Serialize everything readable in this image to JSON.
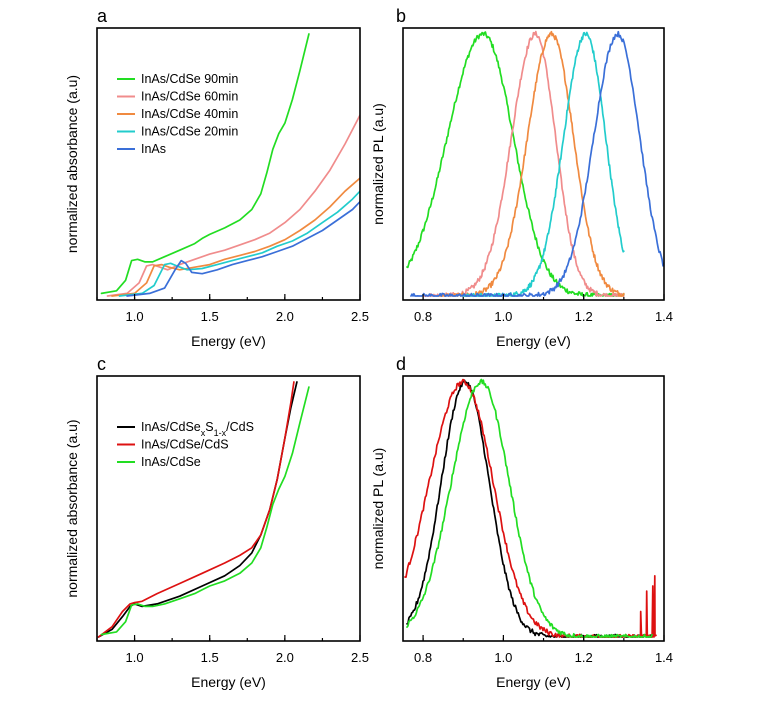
{
  "chart_data": [
    {
      "panel": "a",
      "type": "line",
      "xlabel": "Energy (eV)",
      "ylabel": "normalized absorbance (a.u)",
      "xlim": [
        0.75,
        2.5
      ],
      "ylim": [
        0,
        1
      ],
      "xticks": [
        1.0,
        1.5,
        2.0,
        2.5
      ],
      "xtick_labels": [
        "1.0",
        "1.5",
        "2.0",
        "2.5"
      ],
      "legend_position": "top-left",
      "series": [
        {
          "name": "InAs/CdSe 90min",
          "color": "#22dd22",
          "x": [
            0.78,
            0.88,
            0.94,
            0.98,
            1.02,
            1.07,
            1.12,
            1.2,
            1.3,
            1.4,
            1.45,
            1.5,
            1.6,
            1.7,
            1.78,
            1.84,
            1.88,
            1.92,
            1.96,
            2.0,
            2.05,
            2.1,
            2.16
          ],
          "y": [
            0.01,
            0.02,
            0.06,
            0.135,
            0.14,
            0.13,
            0.13,
            0.15,
            0.175,
            0.2,
            0.22,
            0.235,
            0.26,
            0.29,
            0.33,
            0.39,
            0.47,
            0.56,
            0.62,
            0.66,
            0.75,
            0.86,
            1.0
          ]
        },
        {
          "name": "InAs/CdSe 60min",
          "color": "#f08c8c",
          "x": [
            0.82,
            0.95,
            1.03,
            1.08,
            1.12,
            1.17,
            1.22,
            1.3,
            1.4,
            1.5,
            1.6,
            1.7,
            1.8,
            1.9,
            2.0,
            2.1,
            2.2,
            2.3,
            2.4,
            2.5
          ],
          "y": [
            0.0,
            0.01,
            0.05,
            0.115,
            0.12,
            0.11,
            0.1,
            0.12,
            0.14,
            0.16,
            0.175,
            0.195,
            0.215,
            0.24,
            0.28,
            0.33,
            0.4,
            0.48,
            0.58,
            0.69
          ]
        },
        {
          "name": "InAs/CdSe 40min",
          "color": "#f08a40",
          "x": [
            0.85,
            1.0,
            1.08,
            1.13,
            1.18,
            1.23,
            1.3,
            1.4,
            1.5,
            1.6,
            1.7,
            1.8,
            1.9,
            2.0,
            2.1,
            2.2,
            2.3,
            2.4,
            2.5
          ],
          "y": [
            0.0,
            0.01,
            0.05,
            0.115,
            0.12,
            0.11,
            0.1,
            0.11,
            0.12,
            0.14,
            0.155,
            0.17,
            0.19,
            0.215,
            0.25,
            0.29,
            0.34,
            0.4,
            0.45
          ]
        },
        {
          "name": "InAs/CdSe 20min",
          "color": "#22cccc",
          "x": [
            0.9,
            1.05,
            1.13,
            1.2,
            1.24,
            1.28,
            1.35,
            1.45,
            1.55,
            1.65,
            1.75,
            1.85,
            1.95,
            2.05,
            2.15,
            2.25,
            2.35,
            2.45,
            2.5
          ],
          "y": [
            0.0,
            0.01,
            0.04,
            0.12,
            0.125,
            0.115,
            0.1,
            0.105,
            0.12,
            0.135,
            0.15,
            0.165,
            0.19,
            0.21,
            0.24,
            0.28,
            0.32,
            0.37,
            0.4
          ]
        },
        {
          "name": "InAs",
          "color": "#3a6fd8",
          "x": [
            0.95,
            1.1,
            1.2,
            1.27,
            1.31,
            1.34,
            1.38,
            1.45,
            1.55,
            1.65,
            1.75,
            1.85,
            1.95,
            2.05,
            2.15,
            2.25,
            2.35,
            2.45,
            2.5
          ],
          "y": [
            0.0,
            0.01,
            0.03,
            0.1,
            0.135,
            0.125,
            0.09,
            0.085,
            0.1,
            0.12,
            0.135,
            0.15,
            0.17,
            0.19,
            0.22,
            0.25,
            0.29,
            0.33,
            0.36
          ]
        }
      ]
    },
    {
      "panel": "b",
      "type": "line",
      "xlabel": "Energy (eV)",
      "ylabel": "normalized PL (a.u)",
      "xlim": [
        0.75,
        1.4
      ],
      "ylim": [
        0,
        1
      ],
      "xticks": [
        0.8,
        1.0,
        1.2,
        1.4
      ],
      "xtick_labels": [
        "0.8",
        "1.0",
        "1.2",
        "1.4"
      ],
      "series": [
        {
          "name": "InAs/CdSe 90min",
          "color": "#22dd22",
          "peak": 0.95,
          "width_low": 0.09,
          "width_high": 0.075,
          "x_range": [
            0.76,
            1.3
          ]
        },
        {
          "name": "InAs/CdSe 60min",
          "color": "#f08c8c",
          "peak": 1.08,
          "width_low": 0.06,
          "width_high": 0.05,
          "x_range": [
            0.8,
            1.3
          ]
        },
        {
          "name": "InAs/CdSe 40min",
          "color": "#f08a40",
          "peak": 1.12,
          "width_low": 0.06,
          "width_high": 0.055,
          "x_range": [
            0.84,
            1.3
          ]
        },
        {
          "name": "InAs/CdSe 20min",
          "color": "#22cccc",
          "peak": 1.205,
          "width_low": 0.055,
          "width_high": 0.05,
          "x_range": [
            0.9,
            1.3
          ]
        },
        {
          "name": "InAs",
          "color": "#3a6fd8",
          "peak": 1.285,
          "width_low": 0.06,
          "width_high": 0.055,
          "x_range": [
            0.77,
            1.4
          ]
        }
      ]
    },
    {
      "panel": "c",
      "type": "line",
      "xlabel": "Energy (eV)",
      "ylabel": "normalized absorbance (a.u)",
      "xlim": [
        0.75,
        2.5
      ],
      "ylim": [
        0,
        1
      ],
      "xticks": [
        1.0,
        1.5,
        2.0,
        2.5
      ],
      "xtick_labels": [
        "1.0",
        "1.5",
        "2.0",
        "2.5"
      ],
      "legend_position": "top-left",
      "series": [
        {
          "name": "InAs/CdSexS1-x/CdS",
          "name_parts": [
            "InAs/CdSe",
            "x",
            "S",
            "1-x",
            "/CdS"
          ],
          "color": "#000000",
          "x": [
            0.76,
            0.85,
            0.92,
            0.97,
            1.0,
            1.05,
            1.15,
            1.3,
            1.45,
            1.6,
            1.7,
            1.78,
            1.84,
            1.9,
            1.95,
            2.0,
            2.04,
            2.08
          ],
          "y": [
            0.0,
            0.03,
            0.08,
            0.12,
            0.13,
            0.12,
            0.13,
            0.16,
            0.2,
            0.24,
            0.28,
            0.33,
            0.4,
            0.5,
            0.62,
            0.78,
            0.9,
            1.0
          ]
        },
        {
          "name": "InAs/CdSe/CdS",
          "color": "#dd1111",
          "x": [
            0.76,
            0.85,
            0.92,
            0.97,
            1.0,
            1.05,
            1.15,
            1.3,
            1.45,
            1.6,
            1.7,
            1.78,
            1.84,
            1.9,
            1.95,
            2.0,
            2.04,
            2.06
          ],
          "y": [
            0.0,
            0.04,
            0.1,
            0.13,
            0.135,
            0.14,
            0.17,
            0.21,
            0.25,
            0.29,
            0.32,
            0.35,
            0.4,
            0.5,
            0.62,
            0.78,
            0.92,
            1.0
          ]
        },
        {
          "name": "InAs/CdSe",
          "color": "#22dd22",
          "x": [
            0.78,
            0.88,
            0.94,
            0.98,
            1.02,
            1.07,
            1.12,
            1.2,
            1.3,
            1.4,
            1.45,
            1.5,
            1.6,
            1.7,
            1.78,
            1.84,
            1.88,
            1.92,
            1.96,
            2.0,
            2.05,
            2.1,
            2.16
          ],
          "y": [
            0.01,
            0.02,
            0.06,
            0.125,
            0.13,
            0.12,
            0.12,
            0.13,
            0.15,
            0.17,
            0.185,
            0.2,
            0.22,
            0.25,
            0.29,
            0.35,
            0.43,
            0.52,
            0.58,
            0.63,
            0.72,
            0.84,
            0.98
          ]
        }
      ]
    },
    {
      "panel": "d",
      "type": "line",
      "xlabel": "Energy (eV)",
      "ylabel": "normalized PL (a.u)",
      "xlim": [
        0.75,
        1.4
      ],
      "ylim": [
        0,
        1
      ],
      "xticks": [
        0.8,
        1.0,
        1.2,
        1.4
      ],
      "xtick_labels": [
        "0.8",
        "1.0",
        "1.2",
        "1.4"
      ],
      "series": [
        {
          "name": "InAs/CdSexS1-x/CdS",
          "color": "#000000",
          "peak": 0.905,
          "width_low": 0.06,
          "width_high": 0.06,
          "x_range": [
            0.76,
            1.37
          ]
        },
        {
          "name": "InAs/CdSe/CdS",
          "color": "#dd1111",
          "peak": 0.9,
          "width_low": 0.085,
          "width_high": 0.075,
          "x_range": [
            0.755,
            1.38
          ]
        },
        {
          "name": "InAs/CdSe",
          "color": "#22dd22",
          "peak": 0.945,
          "width_low": 0.075,
          "width_high": 0.07,
          "x_range": [
            0.76,
            1.37
          ]
        }
      ]
    }
  ],
  "panels": [
    {
      "letter": "a"
    },
    {
      "letter": "b"
    },
    {
      "letter": "c"
    },
    {
      "letter": "d"
    }
  ]
}
